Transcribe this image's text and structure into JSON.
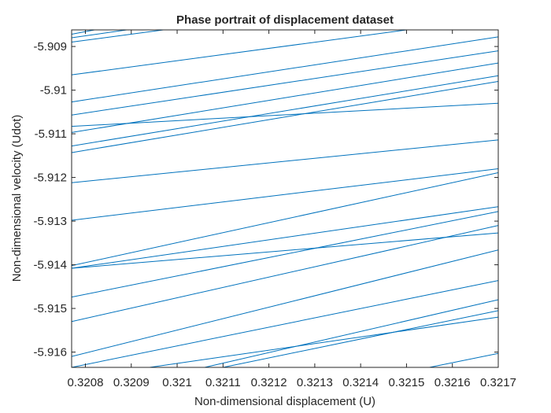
{
  "chart_data": {
    "type": "line",
    "title": "Phase portrait of displacement dataset",
    "xlabel": "Non-dimensional displacement (U)",
    "ylabel": "Non-dimensional velocity (Udot)",
    "xlim": [
      0.32077,
      0.3217
    ],
    "ylim": [
      -5.91635,
      -5.90862
    ],
    "xticks": [
      "0.3208",
      "0.3209",
      "0.321",
      "0.3211",
      "0.3212",
      "0.3213",
      "0.3214",
      "0.3215",
      "0.3216",
      "0.3217"
    ],
    "yticks": [
      "-5.909",
      "-5.91",
      "-5.911",
      "-5.912",
      "-5.913",
      "-5.914",
      "-5.915",
      "-5.916"
    ],
    "grid": false,
    "line_color": "#0072bd",
    "series": [
      {
        "x": [
          0.32077,
          0.32082
        ],
        "y": [
          -5.90872,
          -5.90862
        ]
      },
      {
        "x": [
          0.32077,
          0.32089
        ],
        "y": [
          -5.9088,
          -5.90862
        ]
      },
      {
        "x": [
          0.32077,
          0.32097
        ],
        "y": [
          -5.9089,
          -5.90862
        ]
      },
      {
        "x": [
          0.32077,
          0.3215
        ],
        "y": [
          -5.90965,
          -5.90862
        ]
      },
      {
        "x": [
          0.32077,
          0.3217
        ],
        "y": [
          -5.91027,
          -5.90878
        ]
      },
      {
        "x": [
          0.32077,
          0.3217
        ],
        "y": [
          -5.91057,
          -5.9091
        ]
      },
      {
        "x": [
          0.32077,
          0.3217
        ],
        "y": [
          -5.91097,
          -5.90938
        ]
      },
      {
        "x": [
          0.32077,
          0.3217
        ],
        "y": [
          -5.91128,
          -5.90967
        ]
      },
      {
        "x": [
          0.32077,
          0.3217
        ],
        "y": [
          -5.91143,
          -5.9098
        ]
      },
      {
        "x": [
          0.32077,
          0.3217
        ],
        "y": [
          -5.91083,
          -5.9103
        ]
      },
      {
        "x": [
          0.32077,
          0.3217
        ],
        "y": [
          -5.91212,
          -5.91114
        ]
      },
      {
        "x": [
          0.32077,
          0.3217
        ],
        "y": [
          -5.91298,
          -5.9118
        ]
      },
      {
        "x": [
          0.32077,
          0.3217
        ],
        "y": [
          -5.91402,
          -5.91189
        ]
      },
      {
        "x": [
          0.32077,
          0.3217
        ],
        "y": [
          -5.91408,
          -5.91267
        ]
      },
      {
        "x": [
          0.32077,
          0.3217
        ],
        "y": [
          -5.91408,
          -5.91327
        ]
      },
      {
        "x": [
          0.32077,
          0.3217
        ],
        "y": [
          -5.91474,
          -5.91278
        ]
      },
      {
        "x": [
          0.32077,
          0.3217
        ],
        "y": [
          -5.9153,
          -5.9131
        ]
      },
      {
        "x": [
          0.32077,
          0.3217
        ],
        "y": [
          -5.9161,
          -5.91366
        ]
      },
      {
        "x": [
          0.32077,
          0.3217
        ],
        "y": [
          -5.91635,
          -5.91436
        ]
      },
      {
        "x": [
          0.32106,
          0.3217
        ],
        "y": [
          -5.91635,
          -5.9148
        ]
      },
      {
        "x": [
          0.32094,
          0.3217
        ],
        "y": [
          -5.91635,
          -5.9152
        ]
      },
      {
        "x": [
          0.3211,
          0.3217
        ],
        "y": [
          -5.91635,
          -5.91505
        ]
      },
      {
        "x": [
          0.32155,
          0.3217
        ],
        "y": [
          -5.91635,
          -5.91603
        ]
      }
    ]
  }
}
